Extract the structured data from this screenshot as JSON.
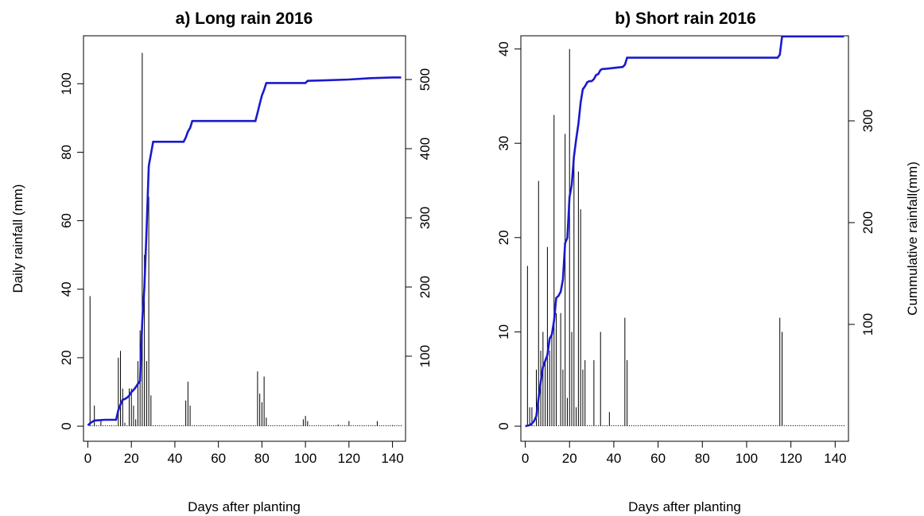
{
  "chart_data": [
    {
      "type": "bar+line",
      "title": "a) Long rain 2016",
      "xlabel": "Days after planting",
      "ylabel": "Daily rainfall (mm)",
      "y2label": "",
      "xlim": [
        -2,
        146
      ],
      "ylim": [
        -4.4,
        114
      ],
      "y2lim": [
        0,
        500
      ],
      "xticks": [
        0,
        20,
        40,
        60,
        80,
        100,
        120,
        140
      ],
      "yticks": [
        0,
        20,
        40,
        60,
        80,
        100
      ],
      "y2ticks": [
        100,
        200,
        300,
        400,
        500
      ],
      "grid": false,
      "series": [
        {
          "kind": "bar",
          "axis": "left",
          "x": [
            1,
            3,
            6,
            14,
            15,
            16,
            17,
            19,
            20,
            21,
            22,
            23,
            24,
            25,
            26,
            27,
            28,
            29,
            45,
            46,
            47,
            78,
            79,
            80,
            81,
            82,
            99,
            100,
            101,
            115,
            120,
            133,
            140
          ],
          "values": [
            38,
            6,
            2,
            20,
            22,
            11,
            1,
            11,
            11,
            6,
            2,
            19,
            28,
            109,
            50,
            19,
            67,
            9,
            7.5,
            13,
            6,
            16,
            9.5,
            7,
            14.5,
            2.5,
            2,
            3,
            1.5,
            0.5,
            1.5,
            1.5,
            0.3
          ]
        },
        {
          "kind": "line",
          "axis": "right",
          "color": "#1a1acc",
          "x": [
            0,
            1,
            2,
            3,
            8,
            12,
            13,
            14,
            15,
            16,
            17,
            18,
            19,
            20,
            21,
            22,
            23,
            24,
            25,
            26,
            27,
            28,
            30,
            44,
            45,
            46,
            47,
            48,
            60,
            77,
            78,
            79,
            80,
            81,
            82,
            100,
            101,
            110,
            120,
            130,
            140,
            144
          ],
          "values": [
            0,
            3,
            5,
            7,
            8,
            8,
            8,
            22,
            30,
            37,
            38,
            40,
            43,
            48,
            51,
            55,
            60,
            64,
            150,
            200,
            285,
            375,
            410,
            410,
            416,
            425,
            430,
            440,
            440,
            440,
            452,
            465,
            477,
            485,
            495,
            495,
            498,
            499,
            500,
            502,
            503,
            503
          ]
        }
      ]
    },
    {
      "type": "bar+line",
      "title": "b) Short rain 2016",
      "xlabel": "Days after planting",
      "ylabel": "",
      "y2label": "Cummulative rainfall(mm)",
      "xlim": [
        -2,
        146
      ],
      "ylim": [
        -1.6,
        41.4
      ],
      "y2lim": [
        0,
        380
      ],
      "xticks": [
        0,
        20,
        40,
        60,
        80,
        100,
        120,
        140
      ],
      "yticks": [
        0,
        10,
        20,
        30,
        40
      ],
      "y2ticks": [
        100,
        200,
        300
      ],
      "grid": false,
      "series": [
        {
          "kind": "bar",
          "axis": "left",
          "x": [
            1,
            2,
            3,
            5,
            6,
            7,
            8,
            9,
            10,
            11,
            12,
            13,
            14,
            16,
            17,
            18,
            19,
            20,
            21,
            22,
            23,
            24,
            25,
            26,
            27,
            31,
            34,
            38,
            45,
            46,
            115,
            116
          ],
          "values": [
            17,
            2,
            2,
            6,
            26,
            8,
            10,
            7,
            19,
            8,
            10,
            33,
            12,
            12,
            6,
            31,
            3,
            40,
            10,
            29,
            2,
            27,
            23,
            6,
            7,
            7,
            10,
            1.5,
            11.5,
            7,
            11.5,
            10
          ]
        },
        {
          "kind": "line",
          "axis": "right",
          "color": "#1a1acc",
          "x": [
            0,
            1,
            2,
            3,
            4,
            5,
            6,
            7,
            8,
            9,
            10,
            11,
            12,
            13,
            14,
            15,
            16,
            17,
            18,
            19,
            20,
            21,
            22,
            23,
            24,
            25,
            26,
            27,
            28,
            29,
            30,
            31,
            32,
            33,
            34,
            35,
            36,
            40,
            44,
            45,
            46,
            60,
            80,
            100,
            114,
            115,
            116,
            130,
            144
          ],
          "values": [
            0,
            0.5,
            1,
            2.5,
            5,
            10,
            28,
            44,
            58,
            64,
            70,
            86,
            90,
            104,
            126,
            128,
            132,
            144,
            180,
            185,
            225,
            237,
            265,
            282,
            297,
            318,
            331,
            334,
            338,
            339,
            339,
            341,
            345,
            346,
            350,
            351,
            351,
            352,
            353,
            355,
            362,
            362,
            362,
            362,
            362,
            365,
            383,
            383,
            383
          ]
        }
      ]
    }
  ]
}
